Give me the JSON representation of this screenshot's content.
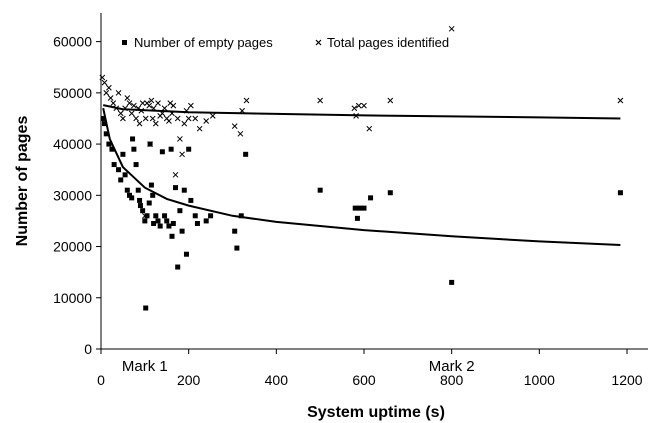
{
  "chart_data": {
    "type": "scatter",
    "title": "",
    "xlabel": "System uptime (s)",
    "ylabel": "Number of pages",
    "xlim": [
      0,
      1200
    ],
    "ylim": [
      0,
      65000
    ],
    "xticks": [
      0,
      200,
      400,
      600,
      800,
      1000,
      1200
    ],
    "yticks": [
      0,
      10000,
      20000,
      30000,
      40000,
      50000,
      60000
    ],
    "xtick_labels": [
      "0",
      "200",
      "400",
      "600",
      "800",
      "1000",
      "1200"
    ],
    "ytick_labels": [
      "0",
      "10000",
      "20000",
      "30000",
      "40000",
      "50000",
      "60000"
    ],
    "grid": false,
    "legend_position": "top",
    "annotations": [
      {
        "text": "Mark 1",
        "x": 100
      },
      {
        "text": "Mark 2",
        "x": 800
      }
    ],
    "series": [
      {
        "name": "Number of empty pages",
        "marker": "square",
        "color": "#000000",
        "points": [
          [
            5,
            45000
          ],
          [
            8,
            44000
          ],
          [
            12,
            42000
          ],
          [
            18,
            40000
          ],
          [
            25,
            39000
          ],
          [
            30,
            36000
          ],
          [
            40,
            35000
          ],
          [
            45,
            33000
          ],
          [
            50,
            38000
          ],
          [
            55,
            34000
          ],
          [
            60,
            31000
          ],
          [
            65,
            30000
          ],
          [
            70,
            29500
          ],
          [
            72,
            41000
          ],
          [
            75,
            39000
          ],
          [
            80,
            36000
          ],
          [
            85,
            31000
          ],
          [
            88,
            29000
          ],
          [
            90,
            28000
          ],
          [
            95,
            27000
          ],
          [
            100,
            25000
          ],
          [
            102,
            8000
          ],
          [
            105,
            26000
          ],
          [
            110,
            28500
          ],
          [
            112,
            40000
          ],
          [
            115,
            32000
          ],
          [
            118,
            30000
          ],
          [
            120,
            24500
          ],
          [
            125,
            26000
          ],
          [
            130,
            25000
          ],
          [
            135,
            24000
          ],
          [
            140,
            38500
          ],
          [
            145,
            26000
          ],
          [
            150,
            25000
          ],
          [
            155,
            24000
          ],
          [
            160,
            39000
          ],
          [
            162,
            22000
          ],
          [
            165,
            24500
          ],
          [
            170,
            31500
          ],
          [
            175,
            16000
          ],
          [
            180,
            27000
          ],
          [
            185,
            23000
          ],
          [
            190,
            31000
          ],
          [
            195,
            18500
          ],
          [
            200,
            39000
          ],
          [
            205,
            29000
          ],
          [
            215,
            26000
          ],
          [
            220,
            24500
          ],
          [
            240,
            25000
          ],
          [
            250,
            26000
          ],
          [
            305,
            23000
          ],
          [
            310,
            19700
          ],
          [
            320,
            26000
          ],
          [
            330,
            38000
          ],
          [
            500,
            31000
          ],
          [
            580,
            27500
          ],
          [
            585,
            25500
          ],
          [
            590,
            27500
          ],
          [
            600,
            27500
          ],
          [
            615,
            29500
          ],
          [
            660,
            30500
          ],
          [
            800,
            13000
          ],
          [
            1185,
            30500
          ]
        ]
      },
      {
        "name": "Total pages identified",
        "marker": "x",
        "color": "#000000",
        "points": [
          [
            3,
            53000
          ],
          [
            8,
            52000
          ],
          [
            12,
            50000
          ],
          [
            18,
            51000
          ],
          [
            22,
            49000
          ],
          [
            28,
            48000
          ],
          [
            35,
            47000
          ],
          [
            40,
            50000
          ],
          [
            45,
            46000
          ],
          [
            50,
            45000
          ],
          [
            55,
            47000
          ],
          [
            60,
            49000
          ],
          [
            65,
            48000
          ],
          [
            70,
            46000
          ],
          [
            75,
            47500
          ],
          [
            80,
            45000
          ],
          [
            85,
            47000
          ],
          [
            88,
            44000
          ],
          [
            92,
            46500
          ],
          [
            95,
            48000
          ],
          [
            100,
            26000
          ],
          [
            102,
            45000
          ],
          [
            105,
            48000
          ],
          [
            110,
            47500
          ],
          [
            112,
            40000
          ],
          [
            115,
            48500
          ],
          [
            118,
            45000
          ],
          [
            120,
            47000
          ],
          [
            125,
            44000
          ],
          [
            130,
            48000
          ],
          [
            135,
            45500
          ],
          [
            140,
            46000
          ],
          [
            145,
            47000
          ],
          [
            150,
            45000
          ],
          [
            155,
            44500
          ],
          [
            158,
            48000
          ],
          [
            162,
            46000
          ],
          [
            165,
            47500
          ],
          [
            170,
            34000
          ],
          [
            175,
            45000
          ],
          [
            180,
            41000
          ],
          [
            185,
            38000
          ],
          [
            190,
            44000
          ],
          [
            195,
            46500
          ],
          [
            200,
            45000
          ],
          [
            205,
            47500
          ],
          [
            215,
            45000
          ],
          [
            225,
            43000
          ],
          [
            240,
            44500
          ],
          [
            255,
            45500
          ],
          [
            305,
            43500
          ],
          [
            318,
            42000
          ],
          [
            322,
            46500
          ],
          [
            332,
            48500
          ],
          [
            500,
            48500
          ],
          [
            578,
            47000
          ],
          [
            582,
            45500
          ],
          [
            588,
            47500
          ],
          [
            600,
            47500
          ],
          [
            612,
            43000
          ],
          [
            660,
            48500
          ],
          [
            800,
            62500
          ],
          [
            1185,
            48500
          ]
        ]
      }
    ],
    "trendlines": [
      {
        "series": "Number of empty pages",
        "points": [
          [
            5,
            47000
          ],
          [
            20,
            41000
          ],
          [
            50,
            35500
          ],
          [
            100,
            31500
          ],
          [
            150,
            29300
          ],
          [
            200,
            28000
          ],
          [
            300,
            26000
          ],
          [
            400,
            24800
          ],
          [
            600,
            23200
          ],
          [
            800,
            22000
          ],
          [
            1000,
            21000
          ],
          [
            1185,
            20300
          ]
        ]
      },
      {
        "series": "Total pages identified",
        "points": [
          [
            5,
            47600
          ],
          [
            50,
            46800
          ],
          [
            200,
            46200
          ],
          [
            400,
            45900
          ],
          [
            600,
            45600
          ],
          [
            800,
            45400
          ],
          [
            1000,
            45200
          ],
          [
            1185,
            45000
          ]
        ]
      }
    ]
  }
}
